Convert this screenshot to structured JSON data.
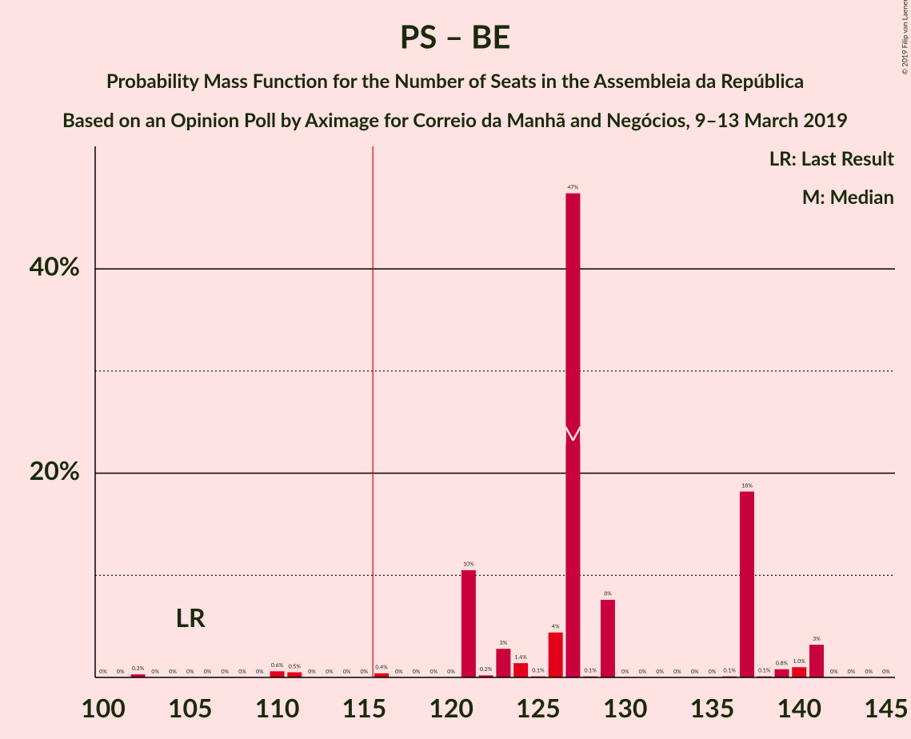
{
  "chart_data": {
    "type": "bar",
    "title": "PS – BE",
    "subtitle": "Probability Mass Function for the Number of Seats in the Assembleia da República",
    "subtitle2": "Based on an Opinion Poll by Aximage for Correio da Manhã and Negócios, 9–13 March 2019",
    "copyright": "© 2019 Filip van Laenen",
    "legend": [
      "LR: Last Result",
      "M: Median"
    ],
    "last_result": 116,
    "last_result_marker": "LR",
    "median": 127,
    "median_marker": "M",
    "categories": [
      100,
      101,
      102,
      103,
      104,
      105,
      106,
      107,
      108,
      109,
      110,
      111,
      112,
      113,
      114,
      115,
      116,
      117,
      118,
      119,
      120,
      121,
      122,
      123,
      124,
      125,
      126,
      127,
      128,
      129,
      130,
      131,
      132,
      133,
      134,
      135,
      136,
      137,
      138,
      139,
      140,
      141,
      142,
      143,
      144,
      145
    ],
    "values": [
      0,
      0,
      0.3,
      0,
      0,
      0,
      0,
      0,
      0,
      0,
      0.6,
      0.5,
      0,
      0,
      0,
      0,
      0.4,
      0,
      0,
      0,
      0,
      10.5,
      0.2,
      2.8,
      1.4,
      0.1,
      4.4,
      47.4,
      0.1,
      7.6,
      0,
      0,
      0,
      0,
      0,
      0,
      0.1,
      18.2,
      0.1,
      0.8,
      1.0,
      3.2,
      0,
      0,
      0,
      0
    ],
    "value_labels": [
      "0%",
      "0%",
      "0.3%",
      "0%",
      "0%",
      "0%",
      "0%",
      "0%",
      "0%",
      "0%",
      "0.6%",
      "0.5%",
      "0%",
      "0%",
      "0%",
      "0%",
      "0.4%",
      "0%",
      "0%",
      "0%",
      "0%",
      "10%",
      "0.2%",
      "3%",
      "1.4%",
      "0.1%",
      "4%",
      "47%",
      "0.1%",
      "8%",
      "0%",
      "0%",
      "0%",
      "0%",
      "0%",
      "0%",
      "0.1%",
      "18%",
      "0.1%",
      "0.8%",
      "1.0%",
      "3%",
      "0%",
      "0%",
      "0%",
      "0%"
    ],
    "colors": [
      "#c8003c",
      "#c8003c",
      "#c8003c",
      "#c8003c",
      "#c8003c",
      "#c8003c",
      "#c8003c",
      "#c8003c",
      "#c8003c",
      "#c8003c",
      "#e3001b",
      "#e3001b",
      "#c8003c",
      "#c8003c",
      "#c8003c",
      "#c8003c",
      "#e3001b",
      "#c8003c",
      "#c8003c",
      "#c8003c",
      "#c8003c",
      "#c8003c",
      "#c8003c",
      "#c8003c",
      "#e3001b",
      "#c8003c",
      "#e3001b",
      "#c8003c",
      "#c8003c",
      "#c8003c",
      "#c8003c",
      "#c8003c",
      "#c8003c",
      "#c8003c",
      "#c8003c",
      "#c8003c",
      "#c8003c",
      "#c8003c",
      "#c8003c",
      "#c8003c",
      "#e3001b",
      "#c8003c",
      "#c8003c",
      "#c8003c",
      "#c8003c",
      "#c8003c"
    ],
    "xlim": [
      100,
      145
    ],
    "xticks": [
      100,
      105,
      110,
      115,
      120,
      125,
      130,
      135,
      140,
      145
    ],
    "ylim": [
      0,
      52
    ],
    "yticks": [
      {
        "value": 20,
        "label": "20%"
      },
      {
        "value": 40,
        "label": "40%"
      }
    ],
    "yminor": [
      10,
      30
    ],
    "grid": true
  }
}
